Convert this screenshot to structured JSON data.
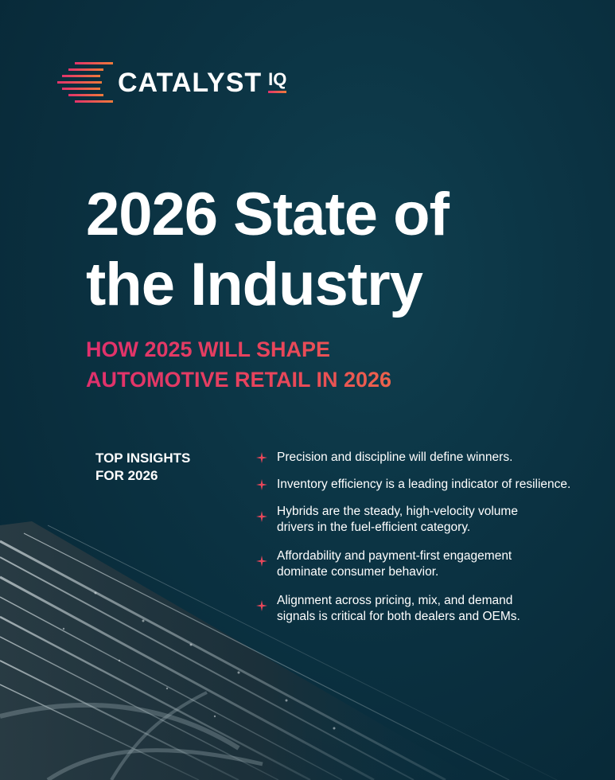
{
  "brand": {
    "name": "CATALYST",
    "suffix": "IQ",
    "colors": {
      "pink": "#e3336b",
      "orange": "#f07a3a"
    }
  },
  "title": {
    "line1": "2026 State of",
    "line2": "the Industry"
  },
  "subtitle": {
    "line1": "HOW 2025 WILL SHAPE",
    "line2": "AUTOMOTIVE RETAIL IN 2026"
  },
  "insights": {
    "heading_line1": "TOP INSIGHTS",
    "heading_line2": "FOR 2026",
    "items": [
      {
        "line1": "Precision and discipline will define winners.",
        "line2": ""
      },
      {
        "line1": "Inventory efficiency is a leading indicator of resilience.",
        "line2": ""
      },
      {
        "line1": "Hybrids are the steady, high-velocity volume",
        "line2": "drivers in the fuel-efficient category."
      },
      {
        "line1": "Affordability and payment-first engagement",
        "line2": "dominate consumer behavior."
      },
      {
        "line1": "Alignment across pricing, mix, and demand",
        "line2": "signals is critical for both dealers and OEMs."
      }
    ],
    "bullet_icon": "sparkle-icon",
    "bullet_color": "#e8475a"
  },
  "background": {
    "image": "aerial highway interchange at night",
    "base_color": "#0b3242"
  }
}
